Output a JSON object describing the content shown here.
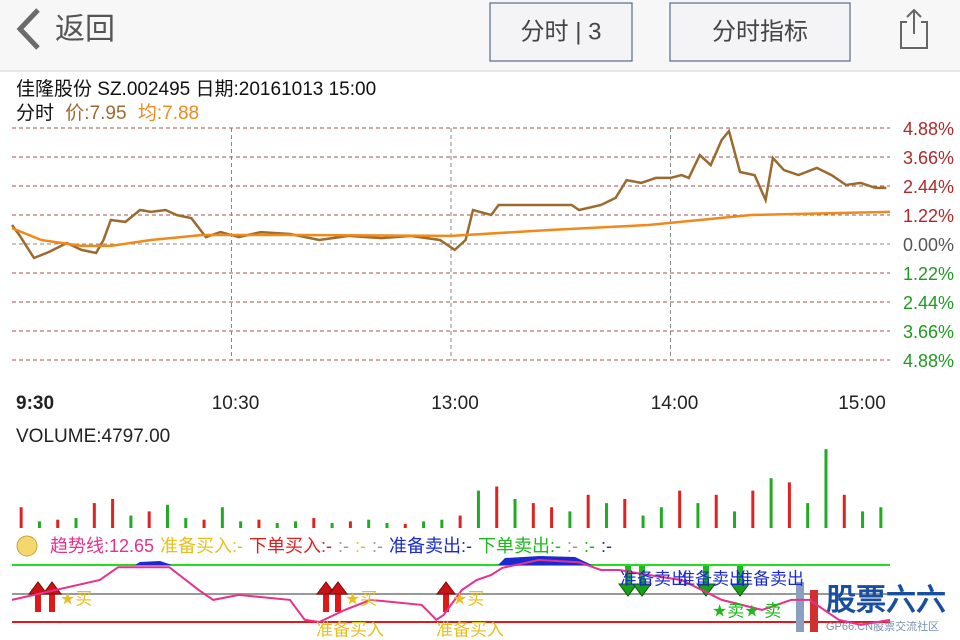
{
  "nav": {
    "back": "返回",
    "tab1": "分时 | 3",
    "tab2": "分时指标"
  },
  "info": {
    "line1": "佳隆股份 SZ.002495 日期:20161013 15:00",
    "label": "分时",
    "price": "价:7.95",
    "avg": "均:7.88"
  },
  "chart_data": {
    "type": "line",
    "xlim": [
      0,
      240
    ],
    "xticks": [
      {
        "value": 0,
        "label": "9:30"
      },
      {
        "value": 60,
        "label": "10:30"
      },
      {
        "value": 120,
        "label": "13:00"
      },
      {
        "value": 180,
        "label": "14:00"
      },
      {
        "value": 240,
        "label": "15:00"
      }
    ],
    "ylim": [
      -4.88,
      4.88
    ],
    "yticks": [
      {
        "value": 4.88,
        "label": "4.88%"
      },
      {
        "value": 3.66,
        "label": "3.66%"
      },
      {
        "value": 2.44,
        "label": "2.44%"
      },
      {
        "value": 1.22,
        "label": "1.22%"
      },
      {
        "value": 0,
        "label": "0.00%"
      },
      {
        "value": -1.22,
        "label": "1.22%"
      },
      {
        "value": -2.44,
        "label": "2.44%"
      },
      {
        "value": -3.66,
        "label": "3.66%"
      },
      {
        "value": -4.88,
        "label": "4.88%"
      }
    ],
    "grid": true,
    "series": [
      {
        "color": "#9b6a2f",
        "x": [
          0,
          2,
          6,
          10,
          15,
          19,
          23,
          25,
          27,
          31,
          35,
          38,
          42,
          45,
          49,
          53,
          57,
          62,
          68,
          76,
          84,
          92,
          101,
          109,
          117,
          121,
          124,
          126,
          131,
          133,
          139,
          144,
          153,
          155,
          161,
          165,
          168,
          172,
          176,
          180,
          183,
          185,
          188,
          191,
          194,
          196,
          199,
          203,
          206,
          208,
          211,
          215,
          220,
          224,
          228,
          232,
          236,
          239
        ],
        "values": [
          0.8,
          0.38,
          -0.59,
          -0.34,
          0.04,
          -0.25,
          -0.38,
          0.17,
          1.01,
          0.93,
          1.43,
          1.35,
          1.43,
          1.22,
          1.09,
          0.29,
          0.5,
          0.29,
          0.5,
          0.42,
          0.17,
          0.34,
          0.25,
          0.34,
          0.17,
          -0.25,
          0.17,
          1.43,
          1.22,
          1.64,
          1.64,
          1.64,
          1.64,
          1.43,
          1.64,
          1.94,
          2.69,
          2.57,
          2.78,
          2.78,
          2.9,
          2.78,
          3.74,
          3.32,
          4.38,
          4.75,
          3.03,
          2.9,
          1.85,
          3.62,
          3.11,
          2.9,
          3.2,
          2.9,
          2.48,
          2.57,
          2.36,
          2.36
        ]
      },
      {
        "color": "#f0891a",
        "x": [
          0,
          8,
          19,
          27,
          38,
          52,
          79,
          120,
          147,
          174,
          202,
          240
        ],
        "values": [
          0.67,
          0.17,
          -0.08,
          -0.08,
          0.17,
          0.38,
          0.38,
          0.34,
          0.59,
          0.8,
          1.22,
          1.35
        ]
      }
    ]
  },
  "volume": {
    "label": "VOLUME:4797.00",
    "ylim": [
      0,
      100
    ],
    "values": [
      25,
      8,
      10,
      12,
      30,
      35,
      15,
      20,
      28,
      12,
      10,
      25,
      8,
      10,
      6,
      8,
      12,
      6,
      8,
      10,
      6,
      5,
      8,
      10,
      15,
      45,
      50,
      35,
      30,
      25,
      20,
      40,
      30,
      35,
      15,
      25,
      45,
      30,
      40,
      20,
      45,
      60,
      55,
      30,
      95,
      40,
      20,
      25
    ],
    "colors": [
      "#d22",
      "#2a2",
      "#d22",
      "#2a2",
      "#d22",
      "#d22",
      "#2a2",
      "#d22",
      "#2a2",
      "#2a2",
      "#d22",
      "#2a2",
      "#2a2",
      "#d22",
      "#2a2",
      "#2a2",
      "#d22",
      "#2a2",
      "#d22",
      "#2a2",
      "#2a2",
      "#d22",
      "#2a2",
      "#2a2",
      "#d22",
      "#2a2",
      "#d22",
      "#2a2",
      "#d22",
      "#d22",
      "#2a2",
      "#d22",
      "#2a2",
      "#d22",
      "#2a2",
      "#2a2",
      "#d22",
      "#2a2",
      "#d22",
      "#2a2",
      "#d22",
      "#2a2",
      "#d22",
      "#2a2",
      "#2a2",
      "#d22",
      "#2a2",
      "#2a2"
    ]
  },
  "indicator": {
    "texts": [
      {
        "text": "趋势线:12.65",
        "color": "#e8308c"
      },
      {
        "text": "准备买入:-",
        "color": "#e6c020"
      },
      {
        "text": "下单买入:-",
        "color": "#e02020"
      },
      {
        "text": ":-",
        "color": "#999"
      },
      {
        "text": ":-",
        "color": "#e6c020"
      },
      {
        "text": ":-",
        "color": "#999"
      },
      {
        "text": "准备卖出:-",
        "color": "#1a2ad0"
      },
      {
        "text": "下单卖出:-",
        "color": "#1cb81c"
      },
      {
        "text": ":-",
        "color": "#999"
      },
      {
        "text": ":-",
        "color": "#1cb81c"
      },
      {
        "text": ":-",
        "color": "#1a2ad0"
      }
    ],
    "trend": {
      "color": "#e8308c",
      "ylim": [
        0,
        100
      ],
      "x": [
        0,
        24,
        29,
        43,
        51,
        55,
        62,
        76,
        80,
        84,
        91,
        98,
        112,
        116,
        118,
        123,
        127,
        131,
        134,
        144,
        155,
        161,
        166,
        174,
        183,
        194,
        205,
        213,
        218,
        226,
        232,
        240
      ],
      "values": [
        41,
        69,
        87,
        87,
        55,
        41,
        48,
        41,
        13,
        10,
        27,
        41,
        34,
        13,
        20,
        55,
        69,
        76,
        86,
        97,
        94,
        83,
        83,
        76,
        69,
        41,
        27,
        41,
        41,
        13,
        6,
        13
      ]
    },
    "signals": [
      "★买",
      "★买",
      "★买",
      "准备买入",
      "准备买入",
      "准备卖出",
      "准备卖出",
      "准备卖出",
      "★卖★ 卖"
    ]
  },
  "watermark": {
    "title": "股票六六",
    "sub": "GP66.CN股票交流社区"
  }
}
